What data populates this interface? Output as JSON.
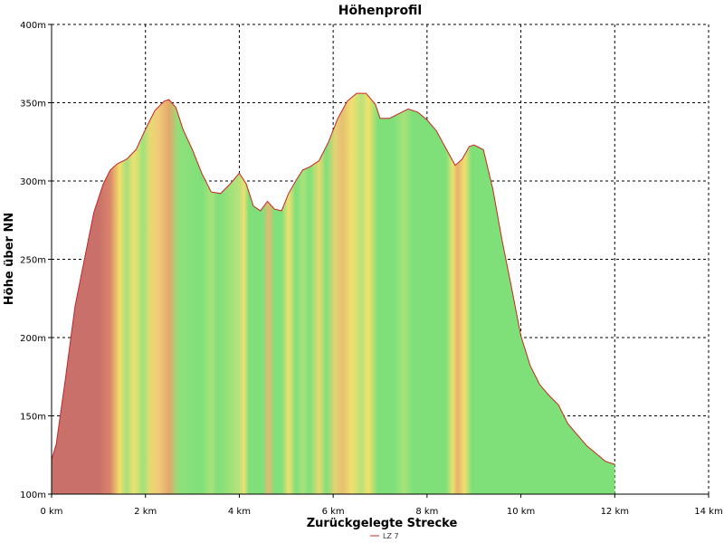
{
  "chart_data": {
    "type": "area",
    "title": "Höhenprofil",
    "xlabel": "Zurückgelegte Strecke",
    "ylabel": "Höhe über NN",
    "xlim": [
      0,
      14
    ],
    "ylim": [
      100,
      400
    ],
    "x_ticks": [
      0,
      2,
      4,
      6,
      8,
      10,
      12,
      14
    ],
    "x_tick_labels": [
      "0 km",
      "2 km",
      "4 km",
      "6 km",
      "8 km",
      "10 km",
      "12 km",
      "14 km"
    ],
    "y_ticks": [
      100,
      150,
      200,
      250,
      300,
      350,
      400
    ],
    "y_tick_labels": [
      "100m",
      "150m",
      "200m",
      "250m",
      "300m",
      "350m",
      "400m"
    ],
    "grid": true,
    "legend_position": "bottom-center",
    "series": [
      {
        "name": "LZ 7",
        "line_color": "#cc2222",
        "x": [
          0,
          0.1,
          0.3,
          0.5,
          0.7,
          0.9,
          1.1,
          1.25,
          1.4,
          1.6,
          1.8,
          2.0,
          2.2,
          2.4,
          2.5,
          2.65,
          2.8,
          3.0,
          3.2,
          3.4,
          3.6,
          3.8,
          4.0,
          4.15,
          4.3,
          4.45,
          4.6,
          4.75,
          4.9,
          5.05,
          5.2,
          5.35,
          5.5,
          5.7,
          5.9,
          6.1,
          6.3,
          6.5,
          6.7,
          6.9,
          7.0,
          7.2,
          7.4,
          7.6,
          7.8,
          8.0,
          8.2,
          8.4,
          8.6,
          8.75,
          8.9,
          9.0,
          9.2,
          9.4,
          9.6,
          9.8,
          10.0,
          10.2,
          10.4,
          10.6,
          10.8,
          11.0,
          11.2,
          11.4,
          11.6,
          11.8,
          12.0
        ],
        "y": [
          122,
          132,
          175,
          220,
          250,
          280,
          298,
          307,
          311,
          314,
          320,
          333,
          345,
          351,
          352,
          347,
          333,
          320,
          305,
          293,
          292,
          298,
          305,
          298,
          284,
          281,
          287,
          282,
          281,
          292,
          300,
          307,
          309,
          313,
          325,
          340,
          351,
          356,
          356,
          349,
          340,
          340,
          343,
          346,
          344,
          339,
          332,
          321,
          310,
          314,
          322,
          323,
          320,
          295,
          262,
          232,
          201,
          182,
          170,
          163,
          157,
          145,
          138,
          131,
          126,
          121,
          119
        ]
      }
    ],
    "fill_gradient_stops": [
      {
        "x": 0.0,
        "color": "#c9706a"
      },
      {
        "x": 1.0,
        "color": "#c9706a"
      },
      {
        "x": 1.25,
        "color": "#d9866a"
      },
      {
        "x": 1.45,
        "color": "#f2e06a"
      },
      {
        "x": 1.6,
        "color": "#a6e07a"
      },
      {
        "x": 1.75,
        "color": "#f0e070"
      },
      {
        "x": 1.95,
        "color": "#9de37a"
      },
      {
        "x": 2.1,
        "color": "#e8d872"
      },
      {
        "x": 2.3,
        "color": "#f2c87a"
      },
      {
        "x": 2.5,
        "color": "#e3a86a"
      },
      {
        "x": 2.7,
        "color": "#90e07a"
      },
      {
        "x": 3.2,
        "color": "#7fe07a"
      },
      {
        "x": 3.4,
        "color": "#a8e27a"
      },
      {
        "x": 3.55,
        "color": "#7fe07a"
      },
      {
        "x": 4.0,
        "color": "#b8e27a"
      },
      {
        "x": 4.1,
        "color": "#eee070"
      },
      {
        "x": 4.2,
        "color": "#7fe07a"
      },
      {
        "x": 4.5,
        "color": "#7fe07a"
      },
      {
        "x": 4.62,
        "color": "#e6b870"
      },
      {
        "x": 4.75,
        "color": "#7fe07a"
      },
      {
        "x": 4.9,
        "color": "#80e07a"
      },
      {
        "x": 5.05,
        "color": "#f0e070"
      },
      {
        "x": 5.2,
        "color": "#7fe07a"
      },
      {
        "x": 5.35,
        "color": "#a8e27a"
      },
      {
        "x": 5.5,
        "color": "#7fe07a"
      },
      {
        "x": 5.7,
        "color": "#e8da72"
      },
      {
        "x": 5.85,
        "color": "#7fe07a"
      },
      {
        "x": 6.05,
        "color": "#e9d072"
      },
      {
        "x": 6.2,
        "color": "#e6c070"
      },
      {
        "x": 6.4,
        "color": "#f0e070"
      },
      {
        "x": 6.6,
        "color": "#b8e27a"
      },
      {
        "x": 6.75,
        "color": "#f2e06a"
      },
      {
        "x": 6.95,
        "color": "#7fe07a"
      },
      {
        "x": 7.3,
        "color": "#7fe07a"
      },
      {
        "x": 7.5,
        "color": "#a8e27a"
      },
      {
        "x": 7.7,
        "color": "#7fe07a"
      },
      {
        "x": 8.4,
        "color": "#7fe07a"
      },
      {
        "x": 8.55,
        "color": "#eee070"
      },
      {
        "x": 8.65,
        "color": "#e6b46e"
      },
      {
        "x": 8.8,
        "color": "#f0e070"
      },
      {
        "x": 8.95,
        "color": "#7fe07a"
      },
      {
        "x": 12.0,
        "color": "#7fe07a"
      }
    ]
  }
}
